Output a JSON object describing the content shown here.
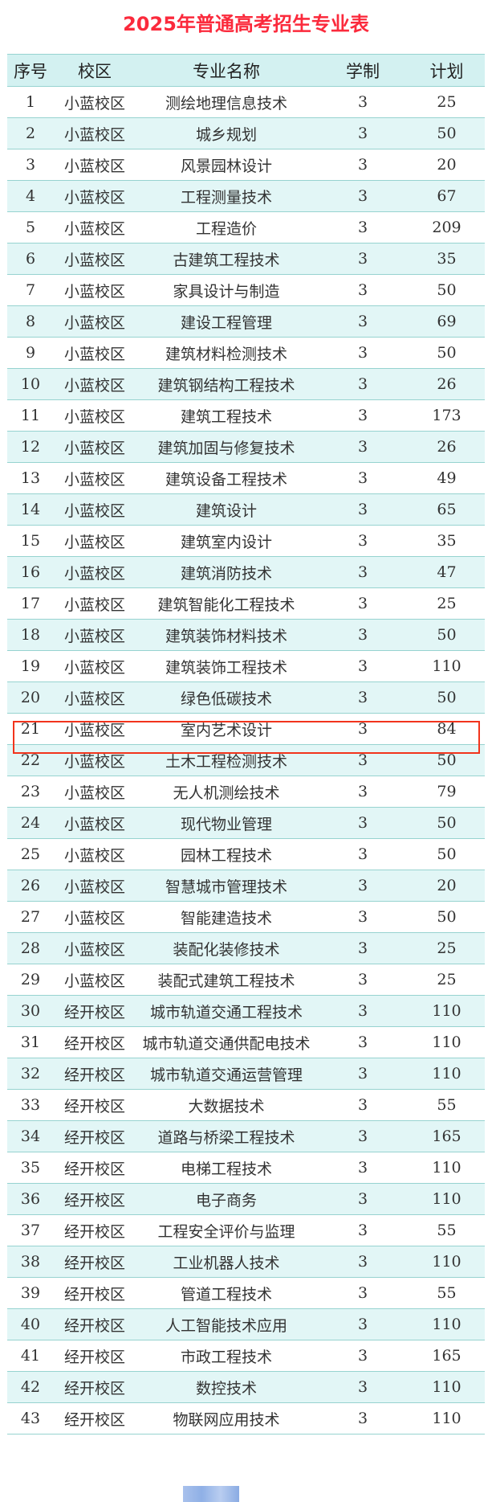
{
  "title": "2025年普通高考招生专业表",
  "columns": [
    "序号",
    "校区",
    "专业名称",
    "学制",
    "计划"
  ],
  "highlighted_row": 21,
  "highlight_color": "#f2341c",
  "rows": [
    [
      "1",
      "小蓝校区",
      "测绘地理信息技术",
      "3",
      "25"
    ],
    [
      "2",
      "小蓝校区",
      "城乡规划",
      "3",
      "50"
    ],
    [
      "3",
      "小蓝校区",
      "风景园林设计",
      "3",
      "20"
    ],
    [
      "4",
      "小蓝校区",
      "工程测量技术",
      "3",
      "67"
    ],
    [
      "5",
      "小蓝校区",
      "工程造价",
      "3",
      "209"
    ],
    [
      "6",
      "小蓝校区",
      "古建筑工程技术",
      "3",
      "35"
    ],
    [
      "7",
      "小蓝校区",
      "家具设计与制造",
      "3",
      "50"
    ],
    [
      "8",
      "小蓝校区",
      "建设工程管理",
      "3",
      "69"
    ],
    [
      "9",
      "小蓝校区",
      "建筑材料检测技术",
      "3",
      "50"
    ],
    [
      "10",
      "小蓝校区",
      "建筑钢结构工程技术",
      "3",
      "26"
    ],
    [
      "11",
      "小蓝校区",
      "建筑工程技术",
      "3",
      "173"
    ],
    [
      "12",
      "小蓝校区",
      "建筑加固与修复技术",
      "3",
      "26"
    ],
    [
      "13",
      "小蓝校区",
      "建筑设备工程技术",
      "3",
      "49"
    ],
    [
      "14",
      "小蓝校区",
      "建筑设计",
      "3",
      "65"
    ],
    [
      "15",
      "小蓝校区",
      "建筑室内设计",
      "3",
      "35"
    ],
    [
      "16",
      "小蓝校区",
      "建筑消防技术",
      "3",
      "47"
    ],
    [
      "17",
      "小蓝校区",
      "建筑智能化工程技术",
      "3",
      "25"
    ],
    [
      "18",
      "小蓝校区",
      "建筑装饰材料技术",
      "3",
      "50"
    ],
    [
      "19",
      "小蓝校区",
      "建筑装饰工程技术",
      "3",
      "110"
    ],
    [
      "20",
      "小蓝校区",
      "绿色低碳技术",
      "3",
      "50"
    ],
    [
      "21",
      "小蓝校区",
      "室内艺术设计",
      "3",
      "84"
    ],
    [
      "22",
      "小蓝校区",
      "土木工程检测技术",
      "3",
      "50"
    ],
    [
      "23",
      "小蓝校区",
      "无人机测绘技术",
      "3",
      "79"
    ],
    [
      "24",
      "小蓝校区",
      "现代物业管理",
      "3",
      "50"
    ],
    [
      "25",
      "小蓝校区",
      "园林工程技术",
      "3",
      "50"
    ],
    [
      "26",
      "小蓝校区",
      "智慧城市管理技术",
      "3",
      "20"
    ],
    [
      "27",
      "小蓝校区",
      "智能建造技术",
      "3",
      "50"
    ],
    [
      "28",
      "小蓝校区",
      "装配化装修技术",
      "3",
      "25"
    ],
    [
      "29",
      "小蓝校区",
      "装配式建筑工程技术",
      "3",
      "25"
    ],
    [
      "30",
      "经开校区",
      "城市轨道交通工程技术",
      "3",
      "110"
    ],
    [
      "31",
      "经开校区",
      "城市轨道交通供配电技术",
      "3",
      "110"
    ],
    [
      "32",
      "经开校区",
      "城市轨道交通运营管理",
      "3",
      "110"
    ],
    [
      "33",
      "经开校区",
      "大数据技术",
      "3",
      "55"
    ],
    [
      "34",
      "经开校区",
      "道路与桥梁工程技术",
      "3",
      "165"
    ],
    [
      "35",
      "经开校区",
      "电梯工程技术",
      "3",
      "110"
    ],
    [
      "36",
      "经开校区",
      "电子商务",
      "3",
      "110"
    ],
    [
      "37",
      "经开校区",
      "工程安全评价与监理",
      "3",
      "55"
    ],
    [
      "38",
      "经开校区",
      "工业机器人技术",
      "3",
      "110"
    ],
    [
      "39",
      "经开校区",
      "管道工程技术",
      "3",
      "55"
    ],
    [
      "40",
      "经开校区",
      "人工智能技术应用",
      "3",
      "110"
    ],
    [
      "41",
      "经开校区",
      "市政工程技术",
      "3",
      "165"
    ],
    [
      "42",
      "经开校区",
      "数控技术",
      "3",
      "110"
    ],
    [
      "43",
      "经开校区",
      "物联网应用技术",
      "3",
      "110"
    ]
  ]
}
